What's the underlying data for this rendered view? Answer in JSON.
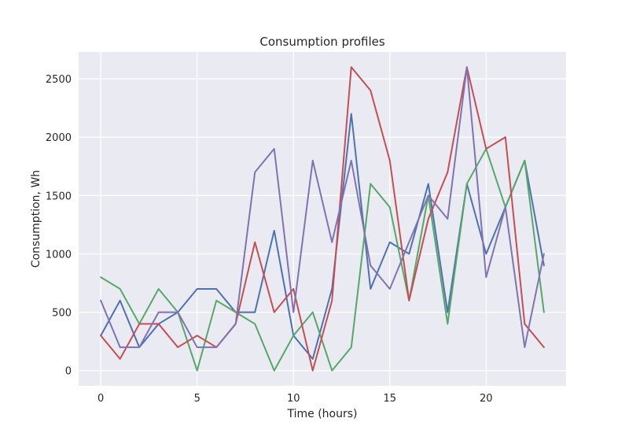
{
  "chart_data": {
    "type": "line",
    "title": "Consumption profiles",
    "xlabel": "Time (hours)",
    "ylabel": "Consumption, Wh",
    "xlim": [
      -1.15,
      24.15
    ],
    "ylim": [
      -130,
      2730
    ],
    "xticks": [
      0,
      5,
      10,
      15,
      20
    ],
    "yticks": [
      0,
      500,
      1000,
      1500,
      2000,
      2500
    ],
    "grid": true,
    "legend": "none",
    "x": [
      0,
      1,
      2,
      3,
      4,
      5,
      6,
      7,
      8,
      9,
      10,
      11,
      12,
      13,
      14,
      15,
      16,
      17,
      18,
      19,
      20,
      21,
      22,
      23
    ],
    "series": [
      {
        "color": "#4c72b0",
        "values": [
          300,
          600,
          200,
          400,
          500,
          700,
          700,
          500,
          500,
          1200,
          300,
          100,
          700,
          2200,
          700,
          1100,
          1000,
          1600,
          500,
          1600,
          1000,
          1400,
          1800,
          900
        ]
      },
      {
        "color": "#55a868",
        "values": [
          800,
          700,
          400,
          700,
          500,
          0,
          600,
          500,
          400,
          0,
          300,
          500,
          0,
          200,
          1600,
          1400,
          600,
          1500,
          400,
          1600,
          1900,
          1400,
          1800,
          500
        ]
      },
      {
        "color": "#c44e52",
        "values": [
          300,
          100,
          400,
          400,
          200,
          300,
          200,
          400,
          1100,
          500,
          700,
          0,
          600,
          2600,
          2400,
          1800,
          600,
          1300,
          1700,
          2600,
          1900,
          2000,
          400,
          200
        ]
      },
      {
        "color": "#8172b2",
        "values": [
          600,
          200,
          200,
          500,
          500,
          200,
          200,
          400,
          1700,
          1900,
          500,
          1800,
          1100,
          1800,
          900,
          700,
          1100,
          1500,
          1300,
          2600,
          800,
          1400,
          200,
          1000
        ]
      }
    ]
  }
}
